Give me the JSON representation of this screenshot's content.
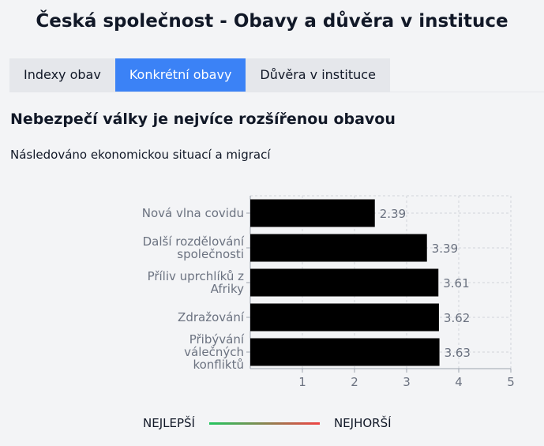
{
  "title": "Česká společnost - Obavy a důvěra v instituce",
  "tabs": [
    {
      "label": "Indexy obav",
      "active": false
    },
    {
      "label": "Konkrétní obavy",
      "active": true
    },
    {
      "label": "Důvěra v instituce",
      "active": false
    }
  ],
  "colors": {
    "accent": "#3b82f6",
    "bar": "#000000",
    "best": "#22c55e",
    "worst": "#ef4444"
  },
  "heading": "Nebezpečí války je nejvíce rozšířenou obavou",
  "subheading": "Následováno ekonomickou situací a migrací",
  "chart_data": {
    "type": "bar",
    "orientation": "horizontal",
    "categories": [
      [
        "Nová vlna covidu"
      ],
      [
        "Další rozdělování",
        "společnosti"
      ],
      [
        "Příliv uprchlíků z",
        "Afriky"
      ],
      [
        "Zdražování"
      ],
      [
        "Přibývání",
        "válečných",
        "konfliktů"
      ]
    ],
    "values": [
      2.39,
      3.39,
      3.61,
      3.62,
      3.63
    ],
    "data_labels": [
      "2.39",
      "3.39",
      "3.61",
      "3.62",
      "3.63"
    ],
    "xlim": [
      0,
      5
    ],
    "xticks": [
      "1",
      "2",
      "3",
      "4",
      "5"
    ],
    "grid": true
  },
  "legend": {
    "left": "NEJLEPŠÍ",
    "right": "NEJHORŠÍ"
  }
}
